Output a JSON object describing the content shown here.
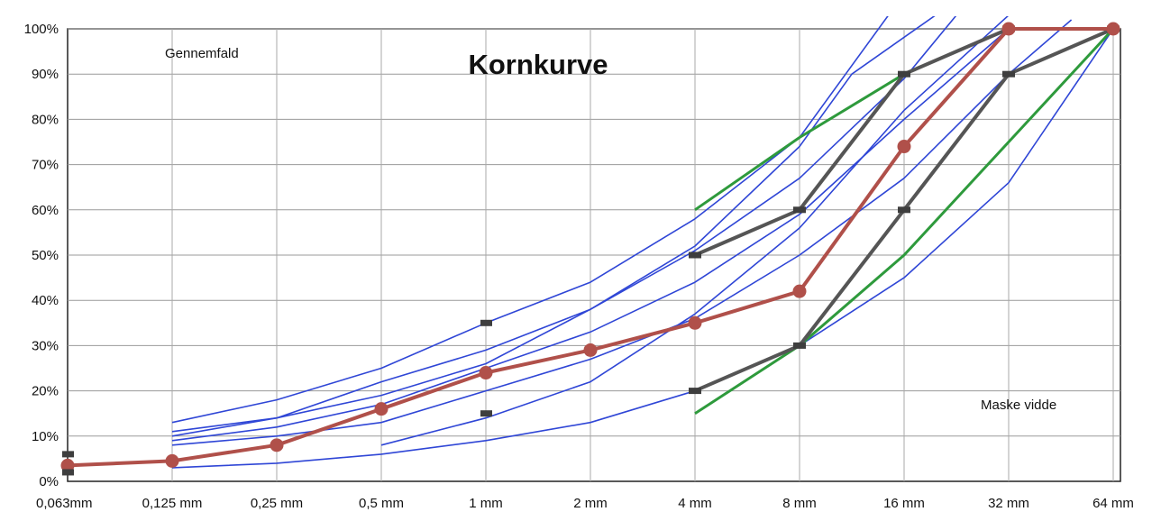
{
  "chart_data": {
    "type": "line",
    "title": "Kornkurve",
    "ylabel": "Gennemfald",
    "xlabel": "Maske vidde",
    "x": [
      "0,063mm",
      "0,125 mm",
      "0,25 mm",
      "0,5 mm",
      "1 mm",
      "2 mm",
      "4 mm",
      "8 mm",
      "16 mm",
      "32 mm",
      "64 mm"
    ],
    "y_ticks": [
      "0%",
      "10%",
      "20%",
      "30%",
      "40%",
      "50%",
      "60%",
      "70%",
      "80%",
      "90%",
      "100%"
    ],
    "ylim": [
      0,
      100
    ],
    "grid": true,
    "colors": {
      "blue_envelope": "#2f46d6",
      "green_limit": "#2e9a3c",
      "grey_limit": "#555555",
      "red_sample": "#b0504a"
    },
    "series": [
      {
        "style": "blue",
        "points": [
          [
            1,
            3
          ],
          [
            2,
            4
          ],
          [
            3,
            6
          ],
          [
            4,
            9
          ],
          [
            5,
            13
          ],
          [
            6,
            20
          ],
          [
            7,
            30
          ],
          [
            8,
            45
          ],
          [
            9,
            66
          ],
          [
            10,
            100
          ]
        ]
      },
      {
        "style": "blue",
        "points": [
          [
            1,
            8
          ],
          [
            2,
            10
          ],
          [
            3,
            13
          ],
          [
            4,
            20
          ],
          [
            5,
            27
          ],
          [
            6,
            36
          ],
          [
            7,
            50
          ],
          [
            8,
            67
          ],
          [
            9,
            90
          ],
          [
            9.6,
            102
          ]
        ]
      },
      {
        "style": "blue",
        "points": [
          [
            1,
            9
          ],
          [
            2,
            12
          ],
          [
            3,
            17
          ],
          [
            4,
            25
          ],
          [
            5,
            33
          ],
          [
            6,
            44
          ],
          [
            7,
            59
          ],
          [
            8,
            80
          ],
          [
            9,
            100
          ]
        ]
      },
      {
        "style": "blue",
        "points": [
          [
            1,
            11
          ],
          [
            2,
            14
          ],
          [
            3,
            19
          ],
          [
            4,
            26
          ],
          [
            5,
            38
          ],
          [
            6,
            51
          ],
          [
            7,
            67
          ],
          [
            8,
            89
          ],
          [
            8.5,
            103
          ]
        ]
      },
      {
        "style": "blue",
        "points": [
          [
            1,
            13
          ],
          [
            2,
            18
          ],
          [
            3,
            25
          ],
          [
            4,
            35
          ],
          [
            5,
            44
          ],
          [
            6,
            58
          ],
          [
            7,
            76
          ],
          [
            7.85,
            103
          ]
        ]
      },
      {
        "style": "blue",
        "points": [
          [
            3,
            8
          ],
          [
            4,
            14
          ],
          [
            5,
            22
          ],
          [
            6,
            37
          ],
          [
            7,
            56
          ],
          [
            8,
            82
          ],
          [
            9,
            103
          ]
        ]
      },
      {
        "style": "blue",
        "points": [
          [
            1,
            10
          ],
          [
            2,
            14
          ],
          [
            3,
            22
          ],
          [
            4,
            29
          ],
          [
            5,
            38
          ],
          [
            6,
            52
          ],
          [
            7,
            74
          ],
          [
            7.5,
            90
          ],
          [
            8.3,
            103
          ]
        ]
      },
      {
        "style": "green",
        "points": [
          [
            6,
            60
          ],
          [
            7,
            76
          ],
          [
            8,
            90
          ],
          [
            9,
            100
          ]
        ]
      },
      {
        "style": "green",
        "points": [
          [
            6,
            15
          ],
          [
            7,
            30
          ],
          [
            8,
            50
          ],
          [
            9,
            75
          ],
          [
            10,
            100
          ]
        ]
      },
      {
        "style": "grey",
        "points": [
          [
            6,
            50
          ],
          [
            7,
            60
          ],
          [
            8,
            90
          ],
          [
            9,
            100
          ],
          [
            10,
            100
          ]
        ]
      },
      {
        "style": "grey",
        "points": [
          [
            6,
            20
          ],
          [
            7,
            30
          ],
          [
            8,
            60
          ],
          [
            9,
            90
          ],
          [
            10,
            100
          ]
        ]
      },
      {
        "style": "red",
        "points": [
          [
            0,
            3.5
          ],
          [
            1,
            4.5
          ],
          [
            2,
            8
          ],
          [
            3,
            16
          ],
          [
            4,
            24
          ],
          [
            5,
            29
          ],
          [
            6,
            35
          ],
          [
            7,
            42
          ],
          [
            8,
            74
          ],
          [
            9,
            100
          ],
          [
            10,
            100
          ]
        ]
      }
    ],
    "markers": [
      [
        0,
        6
      ],
      [
        0,
        2
      ],
      [
        4,
        35
      ],
      [
        4,
        15
      ]
    ]
  }
}
